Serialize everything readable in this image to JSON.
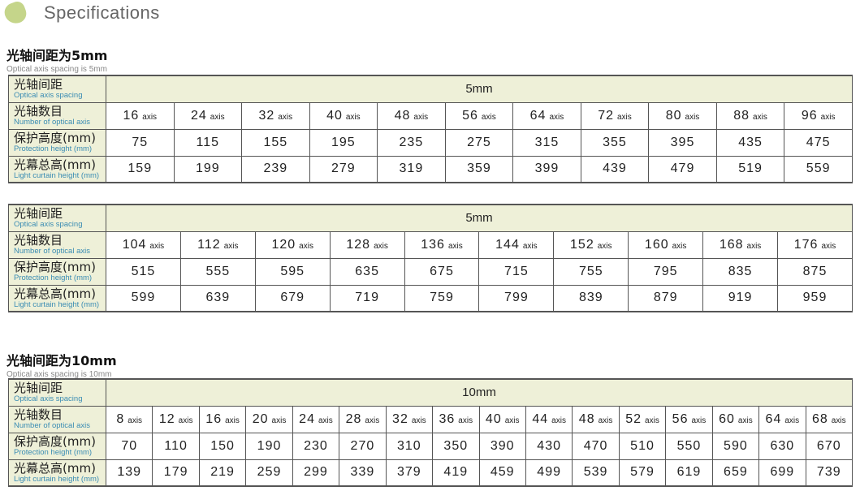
{
  "header": {
    "title": "Specifications"
  },
  "labels": {
    "spacing_zh": "光轴间距",
    "spacing_en": "Optical axis spacing",
    "count_zh": "光轴数目",
    "count_en": "Number of optical axis",
    "prot_zh": "保护高度(mm)",
    "prot_en": "Protection height (mm)",
    "total_zh": "光幕总高(mm)",
    "total_en": "Light curtain height (mm)",
    "axis_unit": "axis"
  },
  "sections": [
    {
      "title": "光轴间距为5mm",
      "subtitle": "Optical axis spacing is 5mm"
    },
    {
      "title": "光轴间距为10mm",
      "subtitle": "Optical axis spacing is 10mm"
    }
  ],
  "tables": [
    {
      "spacing": "5mm",
      "axes": [
        "16",
        "24",
        "32",
        "40",
        "48",
        "56",
        "64",
        "72",
        "80",
        "88",
        "96"
      ],
      "protection": [
        "75",
        "115",
        "155",
        "195",
        "235",
        "275",
        "315",
        "355",
        "395",
        "435",
        "475"
      ],
      "total": [
        "159",
        "199",
        "239",
        "279",
        "319",
        "359",
        "399",
        "439",
        "479",
        "519",
        "559"
      ]
    },
    {
      "spacing": "5mm",
      "axes": [
        "104",
        "112",
        "120",
        "128",
        "136",
        "144",
        "152",
        "160",
        "168",
        "176"
      ],
      "protection": [
        "515",
        "555",
        "595",
        "635",
        "675",
        "715",
        "755",
        "795",
        "835",
        "875"
      ],
      "total": [
        "599",
        "639",
        "679",
        "719",
        "759",
        "799",
        "839",
        "879",
        "919",
        "959"
      ]
    },
    {
      "spacing": "10mm",
      "axes": [
        "8",
        "12",
        "16",
        "20",
        "24",
        "28",
        "32",
        "36",
        "40",
        "44",
        "48",
        "52",
        "56",
        "60",
        "64",
        "68"
      ],
      "protection": [
        "70",
        "110",
        "150",
        "190",
        "230",
        "270",
        "310",
        "350",
        "390",
        "430",
        "470",
        "510",
        "550",
        "590",
        "630",
        "670"
      ],
      "total": [
        "139",
        "179",
        "219",
        "259",
        "299",
        "339",
        "379",
        "419",
        "459",
        "499",
        "539",
        "579",
        "619",
        "659",
        "699",
        "739"
      ]
    }
  ],
  "colors": {
    "label_bg": "#eef0d8",
    "label_en": "#3a8cb3",
    "icon": "#c5d58a"
  }
}
